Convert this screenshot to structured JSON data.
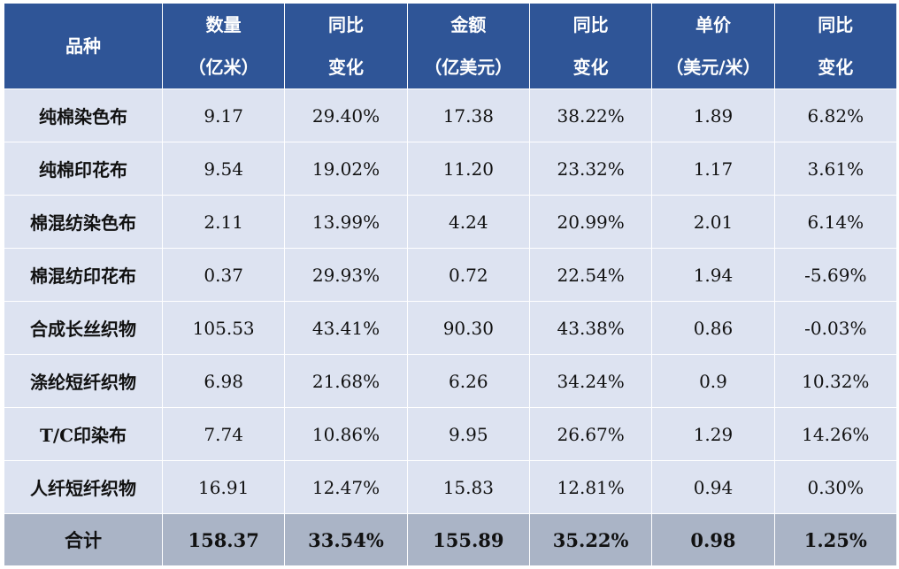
{
  "header": [
    {
      "line1": "品种",
      "line2": ""
    },
    {
      "line1": "数量",
      "line2": "（亿米）"
    },
    {
      "line1": "同比",
      "line2": "变化"
    },
    {
      "line1": "金额",
      "line2": "（亿美元）"
    },
    {
      "line1": "同比",
      "line2": "变化"
    },
    {
      "line1": "单价",
      "line2": "（美元/米）"
    },
    {
      "line1": "同比",
      "line2": "变化"
    }
  ],
  "rows": [
    [
      "纯棉染色布",
      "9.17",
      "29.40%",
      "17.38",
      "38.22%",
      "1.89",
      "6.82%"
    ],
    [
      "纯棉印花布",
      "9.54",
      "19.02%",
      "11.20",
      "23.32%",
      "1.17",
      "3.61%"
    ],
    [
      "棉混纺染色布",
      "2.11",
      "13.99%",
      "4.24",
      "20.99%",
      "2.01",
      "6.14%"
    ],
    [
      "棉混纺印花布",
      "0.37",
      "29.93%",
      "0.72",
      "22.54%",
      "1.94",
      "-5.69%"
    ],
    [
      "合成长丝织物",
      "105.53",
      "43.41%",
      "90.30",
      "43.38%",
      "0.86",
      "-0.03%"
    ],
    [
      "涤纶短纤织物",
      "6.98",
      "21.68%",
      "6.26",
      "34.24%",
      "0.9",
      "10.32%"
    ],
    [
      "T/C印染布",
      "7.74",
      "10.86%",
      "9.95",
      "26.67%",
      "1.29",
      "14.26%"
    ],
    [
      "人纤短纤织物",
      "16.91",
      "12.47%",
      "15.83",
      "12.81%",
      "0.94",
      "0.30%"
    ]
  ],
  "total": [
    "合计",
    "158.37",
    "33.54%",
    "155.89",
    "35.22%",
    "0.98",
    "1.25%"
  ],
  "colors": {
    "header_bg": "#2f5597",
    "row_bg": "#dde3f1",
    "total_bg": "#aab4c6"
  }
}
